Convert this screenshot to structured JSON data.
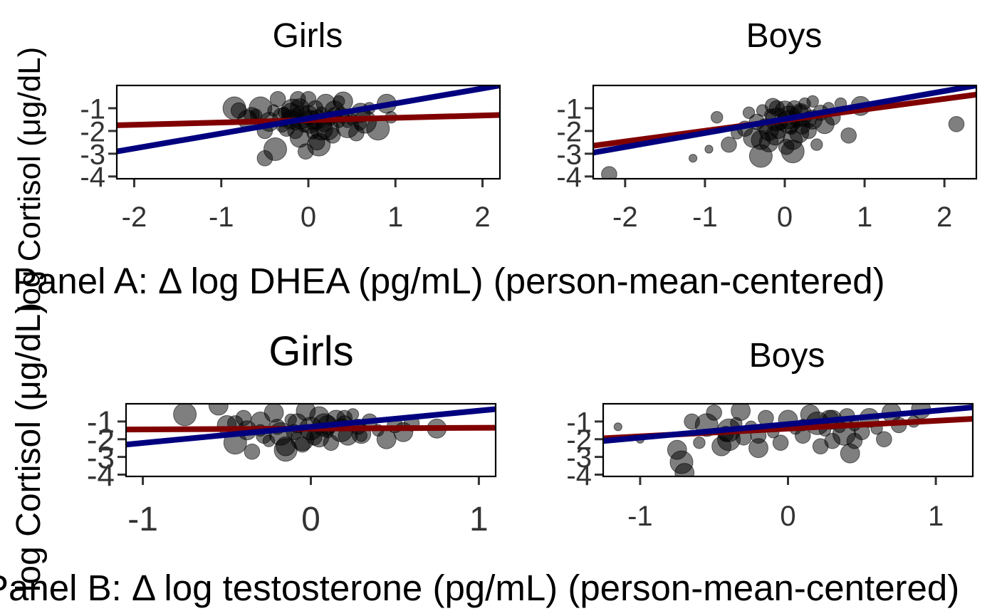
{
  "chart_data": [
    {
      "type": "scatter",
      "panel": "A",
      "title": "Girls",
      "xlabel": "Panel A: Δ log DHEA (pg/mL) (person-mean-centered)",
      "ylabel": "log Cortisol (μg/dL)",
      "xlim": [
        -2.2,
        2.2
      ],
      "ylim": [
        -4.1,
        0.0
      ],
      "x_ticks": [
        "-2",
        "-1",
        "0",
        "1",
        "2"
      ],
      "y_ticks": [
        "-1",
        "-2",
        "-3",
        "-4"
      ],
      "points": {
        "x": [
          -0.85,
          -0.8,
          -0.7,
          -0.6,
          -0.55,
          -0.5,
          -0.45,
          -0.4,
          -0.38,
          -0.35,
          -0.3,
          -0.28,
          -0.25,
          -0.2,
          -0.18,
          -0.15,
          -0.12,
          -0.1,
          -0.08,
          -0.05,
          -0.03,
          0.0,
          0.02,
          0.05,
          0.08,
          0.1,
          0.12,
          0.15,
          0.18,
          0.2,
          0.22,
          0.25,
          0.28,
          0.3,
          0.35,
          0.38,
          0.4,
          0.45,
          0.5,
          0.55,
          0.6,
          0.65,
          0.7,
          0.8,
          0.9,
          0.95,
          -0.5,
          -0.3,
          -0.1,
          0.0,
          0.05,
          0.15,
          0.3,
          0.45,
          -0.2,
          0.1,
          0.25,
          -0.65,
          0.6,
          -0.15,
          0.35
        ],
        "y": [
          -1.0,
          -1.1,
          -1.5,
          -1.3,
          -1.0,
          -3.2,
          -1.6,
          -1.1,
          -2.8,
          -0.6,
          -1.4,
          -1.2,
          -1.9,
          -1.5,
          -1.1,
          -1.7,
          -0.6,
          -2.3,
          -1.4,
          -1.8,
          -2.9,
          -1.3,
          -1.6,
          -2.1,
          -1.0,
          -1.5,
          -2.6,
          -1.2,
          -1.7,
          -0.8,
          -1.9,
          -1.4,
          -2.2,
          -1.1,
          -1.6,
          -1.3,
          -0.7,
          -1.8,
          -1.5,
          -2.1,
          -1.2,
          -1.6,
          -1.0,
          -1.9,
          -0.8,
          -1.4,
          -2.0,
          -1.8,
          -1.0,
          -0.6,
          -1.7,
          -1.9,
          -1.3,
          -1.6,
          -1.2,
          -2.5,
          -1.5,
          -1.3,
          -1.7,
          -2.0,
          -0.7
        ],
        "size": [
          5,
          3,
          4,
          2,
          5,
          3,
          4,
          2,
          5,
          3,
          4,
          2,
          3,
          4,
          5,
          2,
          3,
          4,
          5,
          2,
          3,
          4,
          5,
          2,
          3,
          4,
          5,
          2,
          3,
          4,
          5,
          2,
          3,
          4,
          2,
          3,
          4,
          5,
          2,
          3,
          4,
          5,
          2,
          5,
          4,
          2,
          3,
          2,
          4,
          3,
          2,
          5,
          3,
          2,
          4,
          3,
          2,
          3,
          2,
          3,
          2
        ]
      },
      "lines": [
        {
          "color": "#800000",
          "x": [
            -2.2,
            2.2
          ],
          "y": [
            -1.75,
            -1.3
          ]
        },
        {
          "color": "#00007f",
          "x": [
            -2.2,
            2.2
          ],
          "y": [
            -2.9,
            0.0
          ]
        }
      ]
    },
    {
      "type": "scatter",
      "panel": "A",
      "title": "Boys",
      "xlim": [
        -2.4,
        2.4
      ],
      "ylim": [
        -4.1,
        0.0
      ],
      "x_ticks": [
        "-2",
        "-1",
        "0",
        "1",
        "2"
      ],
      "y_ticks": [
        "-1",
        "-2",
        "-3",
        "-4"
      ],
      "points": {
        "x": [
          -2.2,
          -1.15,
          -0.95,
          -0.85,
          -0.7,
          -0.6,
          -0.5,
          -0.45,
          -0.4,
          -0.35,
          -0.3,
          -0.28,
          -0.25,
          -0.2,
          -0.18,
          -0.15,
          -0.12,
          -0.1,
          -0.08,
          -0.05,
          0.0,
          0.02,
          0.05,
          0.08,
          0.1,
          0.12,
          0.15,
          0.18,
          0.2,
          0.22,
          0.25,
          0.3,
          0.35,
          0.4,
          0.45,
          0.5,
          0.55,
          0.6,
          0.7,
          0.8,
          0.95,
          2.15,
          -0.3,
          -0.1,
          0.05,
          0.2,
          0.35,
          -0.2,
          0.1,
          0.3
        ],
        "y": [
          -3.9,
          -3.2,
          -2.8,
          -1.4,
          -2.6,
          -2.1,
          -1.9,
          -1.2,
          -2.3,
          -1.6,
          -3.1,
          -1.1,
          -1.8,
          -2.5,
          -1.3,
          -0.9,
          -2.2,
          -1.5,
          -2.0,
          -1.7,
          -1.1,
          -2.7,
          -1.4,
          -1.9,
          -2.4,
          -1.0,
          -1.6,
          -2.1,
          -1.3,
          -1.8,
          -0.8,
          -2.0,
          -1.5,
          -2.6,
          -1.2,
          -1.7,
          -1.0,
          -1.4,
          -0.8,
          -2.2,
          -0.9,
          -1.7,
          -2.4,
          -1.0,
          -1.6,
          -1.2,
          -0.7,
          -2.0,
          -2.9,
          -1.5
        ],
        "size": [
          3,
          1,
          1,
          2,
          3,
          2,
          3,
          2,
          4,
          3,
          5,
          2,
          3,
          4,
          2,
          3,
          4,
          5,
          3,
          2,
          4,
          3,
          5,
          2,
          4,
          3,
          2,
          4,
          5,
          3,
          2,
          3,
          4,
          2,
          3,
          4,
          2,
          3,
          2,
          3,
          4,
          3,
          4,
          3,
          5,
          3,
          2,
          4,
          5,
          3
        ]
      },
      "lines": [
        {
          "color": "#800000",
          "x": [
            -2.4,
            2.4
          ],
          "y": [
            -2.65,
            -0.4
          ]
        },
        {
          "color": "#00007f",
          "x": [
            -2.4,
            2.4
          ],
          "y": [
            -2.95,
            0.0
          ]
        }
      ]
    },
    {
      "type": "scatter",
      "panel": "B",
      "title": "Girls",
      "xlabel": "Panel B: Δ log testosterone (pg/mL) (person-mean-centered)",
      "ylabel": "log Cortisol (μg/dL)",
      "xlim": [
        -1.1,
        1.1
      ],
      "ylim": [
        -4.1,
        0.0
      ],
      "x_ticks": [
        "-1",
        "0",
        "1"
      ],
      "y_ticks": [
        "-1",
        "-2",
        "-3",
        "-4"
      ],
      "points": {
        "x": [
          -0.75,
          -0.55,
          -0.5,
          -0.45,
          -0.4,
          -0.38,
          -0.35,
          -0.3,
          -0.28,
          -0.25,
          -0.22,
          -0.2,
          -0.18,
          -0.15,
          -0.12,
          -0.1,
          -0.08,
          -0.05,
          -0.03,
          0.0,
          0.02,
          0.05,
          0.08,
          0.1,
          0.12,
          0.15,
          0.18,
          0.2,
          0.22,
          0.25,
          0.28,
          0.3,
          0.35,
          0.4,
          0.45,
          0.5,
          0.55,
          0.6,
          0.75,
          -0.45,
          -0.15,
          0.05,
          0.2,
          -0.3,
          0.1,
          -0.05,
          0.3
        ],
        "y": [
          -0.6,
          -0.1,
          -1.2,
          -2.2,
          -0.8,
          -1.5,
          -2.7,
          -1.0,
          -1.8,
          -2.1,
          -0.5,
          -1.3,
          -1.7,
          -2.4,
          -0.9,
          -1.6,
          -1.1,
          -2.0,
          -0.4,
          -1.4,
          -1.9,
          -0.7,
          -1.2,
          -1.6,
          -2.2,
          -0.9,
          -1.5,
          -1.1,
          -1.8,
          -0.6,
          -1.3,
          -1.7,
          -1.0,
          -1.5,
          -2.0,
          -1.2,
          -1.6,
          -1.1,
          -1.4,
          -1.1,
          -2.6,
          -1.9,
          -0.8,
          -1.5,
          -1.2,
          -2.3,
          -1.8
        ],
        "size": [
          5,
          4,
          4,
          5,
          3,
          4,
          3,
          4,
          3,
          2,
          4,
          3,
          5,
          4,
          2,
          3,
          4,
          5,
          4,
          5,
          3,
          4,
          5,
          2,
          3,
          4,
          5,
          3,
          4,
          2,
          3,
          4,
          3,
          2,
          4,
          3,
          4,
          3,
          4,
          3,
          5,
          4,
          3,
          2,
          4,
          3,
          2
        ]
      },
      "lines": [
        {
          "color": "#800000",
          "x": [
            -1.1,
            1.1
          ],
          "y": [
            -1.45,
            -1.35
          ]
        },
        {
          "color": "#00007f",
          "x": [
            -1.1,
            1.1
          ],
          "y": [
            -2.3,
            -0.3
          ]
        }
      ]
    },
    {
      "type": "scatter",
      "panel": "B",
      "title": "Boys",
      "xlim": [
        -1.25,
        1.25
      ],
      "ylim": [
        -4.1,
        0.0
      ],
      "x_ticks": [
        "-1",
        "0",
        "1"
      ],
      "y_ticks": [
        "-1",
        "-2",
        "-3",
        "-4"
      ],
      "points": {
        "x": [
          -1.15,
          -1.0,
          -0.75,
          -0.72,
          -0.7,
          -0.65,
          -0.6,
          -0.55,
          -0.5,
          -0.45,
          -0.42,
          -0.4,
          -0.35,
          -0.32,
          -0.3,
          -0.25,
          -0.2,
          -0.15,
          -0.1,
          -0.05,
          0.0,
          0.05,
          0.1,
          0.15,
          0.2,
          0.22,
          0.25,
          0.28,
          0.3,
          0.35,
          0.38,
          0.4,
          0.42,
          0.45,
          0.5,
          0.55,
          0.6,
          0.65,
          0.7,
          0.75,
          0.85,
          0.9,
          -0.4,
          -0.2,
          0.1,
          0.3,
          0.45
        ],
        "y": [
          -1.3,
          -2.0,
          -2.6,
          -3.3,
          -3.9,
          -1.0,
          -2.2,
          -1.2,
          -0.5,
          -2.4,
          -1.7,
          -2.0,
          -1.1,
          -0.4,
          -1.9,
          -1.3,
          -2.5,
          -0.8,
          -1.6,
          -2.2,
          -0.9,
          -1.4,
          -1.8,
          -0.6,
          -1.1,
          -2.4,
          -1.5,
          -0.9,
          -2.1,
          -1.3,
          -1.7,
          -0.7,
          -2.8,
          -1.2,
          -1.6,
          -0.8,
          -1.4,
          -2.0,
          -0.5,
          -1.2,
          -1.0,
          -0.3,
          -1.5,
          -1.8,
          -1.2,
          -0.9,
          -2.1
        ],
        "size": [
          1,
          1,
          4,
          5,
          4,
          3,
          2,
          5,
          3,
          4,
          3,
          5,
          2,
          4,
          3,
          2,
          4,
          3,
          2,
          3,
          4,
          2,
          3,
          4,
          5,
          3,
          2,
          4,
          3,
          2,
          5,
          3,
          4,
          2,
          3,
          4,
          2,
          3,
          4,
          3,
          2,
          4,
          5,
          3,
          2,
          4,
          3
        ]
      },
      "lines": [
        {
          "color": "#800000",
          "x": [
            -1.25,
            1.25
          ],
          "y": [
            -1.95,
            -0.85
          ]
        },
        {
          "color": "#00007f",
          "x": [
            -1.25,
            1.25
          ],
          "y": [
            -2.1,
            -0.2
          ]
        }
      ]
    }
  ]
}
